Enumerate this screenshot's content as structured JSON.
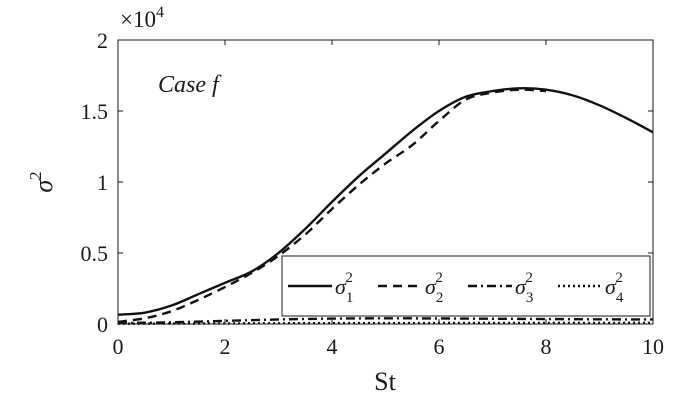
{
  "chart_data": {
    "type": "line",
    "annotation": "Case f",
    "xlabel": "St",
    "ylabel_base": "σ",
    "ylabel_sup": "2",
    "y_multiplier_base": "×10",
    "y_multiplier_exp": "4",
    "xlim": [
      0,
      10
    ],
    "ylim": [
      0,
      20000
    ],
    "x_ticks": [
      0,
      2,
      4,
      6,
      8,
      10
    ],
    "x_tick_labels": [
      "0",
      "2",
      "4",
      "6",
      "8",
      "10"
    ],
    "y_ticks": [
      0,
      5000,
      10000,
      15000,
      20000
    ],
    "y_tick_labels": [
      "0",
      "0.5",
      "1",
      "1.5",
      "2"
    ],
    "grid": false,
    "legend_placement": "bottom-right",
    "series": [
      {
        "base": "σ",
        "sub": "1",
        "sup": "2",
        "dash": "solid",
        "x": [
          0,
          0.5,
          1,
          1.5,
          2,
          2.5,
          3,
          3.5,
          4,
          4.5,
          5,
          5.5,
          6,
          6.5,
          7,
          7.5,
          8,
          8.5,
          9,
          9.5,
          10
        ],
        "y": [
          650,
          800,
          1300,
          2100,
          2900,
          3700,
          5000,
          6700,
          8600,
          10400,
          12000,
          13600,
          15000,
          16000,
          16400,
          16600,
          16500,
          16100,
          15400,
          14500,
          13500
        ]
      },
      {
        "base": "σ",
        "sub": "2",
        "sup": "2",
        "dash": "dashed",
        "x": [
          0,
          0.5,
          1,
          1.5,
          2,
          2.5,
          3,
          3.5,
          4,
          4.5,
          5,
          5.5,
          6,
          6.5,
          7,
          7.5,
          8
        ],
        "y": [
          150,
          400,
          900,
          1700,
          2600,
          3600,
          4800,
          6300,
          8100,
          9800,
          11300,
          12600,
          14300,
          15800,
          16300,
          16500,
          16400
        ]
      },
      {
        "base": "σ",
        "sub": "3",
        "sup": "2",
        "dash": "dashdot",
        "x": [
          0,
          1,
          2,
          3,
          4,
          5,
          6,
          7,
          8,
          9,
          10
        ],
        "y": [
          60,
          120,
          220,
          320,
          380,
          400,
          390,
          370,
          350,
          330,
          320
        ]
      },
      {
        "base": "σ",
        "sub": "4",
        "sup": "2",
        "dash": "dotted",
        "x": [
          0,
          2,
          4,
          6,
          8,
          10
        ],
        "y": [
          20,
          40,
          60,
          70,
          75,
          80
        ]
      }
    ]
  }
}
